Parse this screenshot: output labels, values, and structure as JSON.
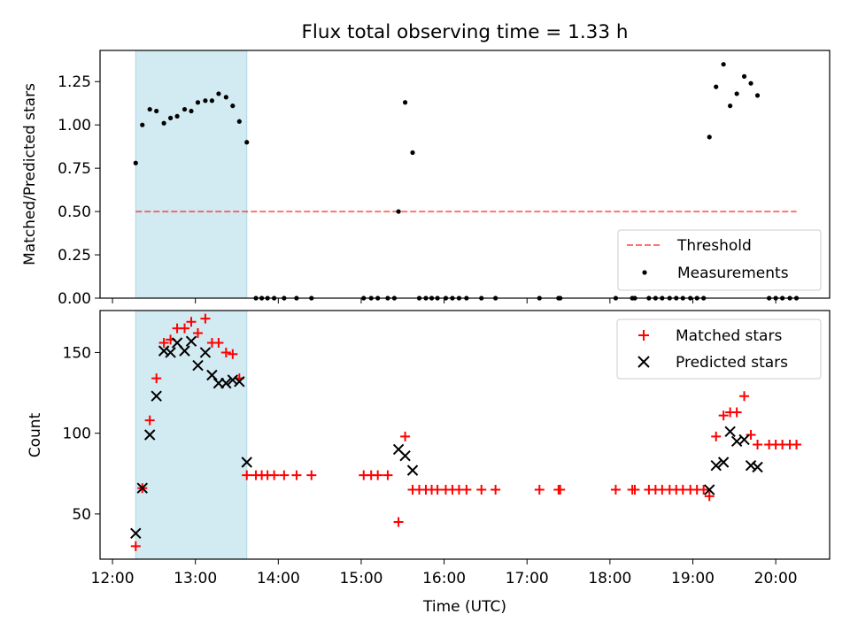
{
  "title": "Flux total observing time = 1.33 h",
  "colors": {
    "shade": "#add8e6",
    "threshold": "#ff0000",
    "matched": "#ff0000",
    "predicted": "#000000",
    "measurement": "#000000"
  },
  "chart_data": [
    {
      "type": "scatter",
      "panel": "top",
      "ylabel": "Matched/Predicted stars",
      "xlabel": "",
      "xlim": [
        11.85,
        20.65
      ],
      "ylim": [
        0,
        1.43
      ],
      "yticks": [
        0.0,
        0.25,
        0.5,
        0.75,
        1.0,
        1.25
      ],
      "ytick_labels": [
        "0.00",
        "0.25",
        "0.50",
        "0.75",
        "1.00",
        "1.25"
      ],
      "xticks": [
        12,
        13,
        14,
        15,
        16,
        17,
        18,
        19,
        20
      ],
      "show_x_tick_labels": false,
      "shaded_span": [
        12.28,
        13.62
      ],
      "threshold": {
        "name": "Threshold",
        "value": 0.5,
        "x": [
          12.28,
          20.25
        ]
      },
      "legend": {
        "placement": "lower-right",
        "entries": [
          "Threshold",
          "Measurements"
        ]
      },
      "series": [
        {
          "name": "Measurements",
          "marker": "dot",
          "x": [
            12.28,
            12.36,
            12.45,
            12.53,
            12.62,
            12.7,
            12.78,
            12.87,
            12.95,
            13.03,
            13.12,
            13.2,
            13.28,
            13.37,
            13.45,
            13.53,
            13.62,
            13.73,
            13.8,
            13.87,
            13.95,
            14.07,
            14.22,
            14.4,
            15.03,
            15.12,
            15.2,
            15.32,
            15.4,
            15.45,
            15.53,
            15.62,
            15.7,
            15.78,
            15.85,
            15.92,
            16.02,
            16.1,
            16.18,
            16.27,
            16.45,
            16.62,
            17.15,
            17.38,
            17.4,
            18.07,
            18.27,
            18.3,
            18.47,
            18.55,
            18.63,
            18.72,
            18.8,
            18.88,
            18.97,
            19.05,
            19.13,
            19.2,
            19.28,
            19.37,
            19.45,
            19.53,
            19.62,
            19.7,
            19.78,
            19.92,
            20.0,
            20.08,
            20.17,
            20.25
          ],
          "y": [
            0.78,
            1.0,
            1.09,
            1.08,
            1.01,
            1.04,
            1.05,
            1.09,
            1.08,
            1.13,
            1.14,
            1.14,
            1.18,
            1.16,
            1.11,
            1.02,
            0.9,
            0,
            0,
            0,
            0,
            0,
            0,
            0,
            0,
            0,
            0,
            0,
            0,
            0.5,
            1.13,
            0.84,
            0,
            0,
            0,
            0,
            0,
            0,
            0,
            0,
            0,
            0,
            0,
            0,
            0,
            0,
            0,
            0,
            0,
            0,
            0,
            0,
            0,
            0,
            0,
            0,
            0,
            0.93,
            1.22,
            1.35,
            1.11,
            1.18,
            1.28,
            1.24,
            1.17,
            0,
            0,
            0,
            0,
            0
          ]
        }
      ]
    },
    {
      "type": "scatter",
      "panel": "bottom",
      "xlabel": "Time (UTC)",
      "ylabel": "Count",
      "xlim": [
        11.85,
        20.65
      ],
      "ylim": [
        22,
        176
      ],
      "yticks": [
        50,
        100,
        150
      ],
      "ytick_labels": [
        "50",
        "100",
        "150"
      ],
      "xticks": [
        12,
        13,
        14,
        15,
        16,
        17,
        18,
        19,
        20
      ],
      "xtick_labels": [
        "12:00",
        "13:00",
        "14:00",
        "15:00",
        "16:00",
        "17:00",
        "18:00",
        "19:00",
        "20:00"
      ],
      "shaded_span": [
        12.28,
        13.62
      ],
      "legend": {
        "placement": "upper-right",
        "entries": [
          "Matched stars",
          "Predicted stars"
        ]
      },
      "series": [
        {
          "name": "Matched stars",
          "marker": "plus",
          "x": [
            12.28,
            12.36,
            12.45,
            12.53,
            12.62,
            12.7,
            12.78,
            12.87,
            12.95,
            13.03,
            13.12,
            13.2,
            13.28,
            13.37,
            13.45,
            13.53,
            13.62,
            13.73,
            13.8,
            13.87,
            13.95,
            14.07,
            14.22,
            14.4,
            15.03,
            15.12,
            15.2,
            15.32,
            15.45,
            15.53,
            15.62,
            15.7,
            15.78,
            15.85,
            15.92,
            16.02,
            16.1,
            16.18,
            16.27,
            16.45,
            16.62,
            17.15,
            17.38,
            17.4,
            18.07,
            18.27,
            18.3,
            18.47,
            18.55,
            18.63,
            18.72,
            18.8,
            18.88,
            18.97,
            19.05,
            19.13,
            19.2,
            19.28,
            19.37,
            19.45,
            19.53,
            19.62,
            19.7,
            19.78,
            19.92,
            20.0,
            20.08,
            20.17,
            20.25
          ],
          "y": [
            30,
            66,
            108,
            134,
            156,
            158,
            165,
            165,
            169,
            162,
            171,
            156,
            156,
            150,
            149,
            134,
            74,
            74,
            74,
            74,
            74,
            74,
            74,
            74,
            74,
            74,
            74,
            74,
            45,
            98,
            65,
            65,
            65,
            65,
            65,
            65,
            65,
            65,
            65,
            65,
            65,
            65,
            65,
            65,
            65,
            65,
            65,
            65,
            65,
            65,
            65,
            65,
            65,
            65,
            65,
            65,
            61,
            98,
            111,
            113,
            113,
            123,
            99,
            93,
            93,
            93,
            93,
            93,
            93
          ]
        },
        {
          "name": "Predicted stars",
          "marker": "x",
          "x": [
            12.28,
            12.36,
            12.45,
            12.53,
            12.62,
            12.7,
            12.78,
            12.87,
            12.95,
            13.03,
            13.12,
            13.2,
            13.28,
            13.37,
            13.45,
            13.53,
            13.62,
            15.45,
            15.53,
            15.62,
            19.2,
            19.28,
            19.37,
            19.45,
            19.53,
            19.62,
            19.7,
            19.78
          ],
          "y": [
            38,
            66,
            99,
            123,
            151,
            150,
            156,
            151,
            157,
            142,
            150,
            136,
            131,
            131,
            133,
            132,
            82,
            90,
            86,
            77,
            65,
            80,
            82,
            101,
            95,
            96,
            80,
            79
          ]
        }
      ]
    }
  ]
}
